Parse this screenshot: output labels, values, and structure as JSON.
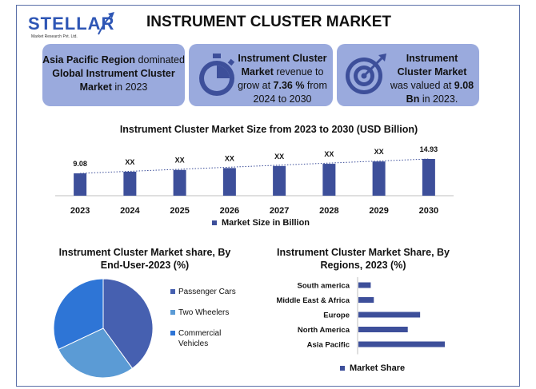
{
  "brand": {
    "name": "STELLAR",
    "sub": "Market Research Pvt. Ltd."
  },
  "title": "INSTRUMENT CLUSTER MARKET",
  "cards": {
    "c1": {
      "a": "Asia Pacific Region",
      "b": " dominated ",
      "c": "Global Instrument Cluster Market",
      "d": " in 2023"
    },
    "c2": {
      "a": "Instrument Cluster Market",
      "b": " revenue to grow at ",
      "c": "7.36 %",
      "d": " from 2024 to 2030"
    },
    "c3": {
      "a": "Instrument Cluster Market",
      "b": " was valued at ",
      "c": "9.08 Bn",
      "d": " in 2023."
    }
  },
  "colors": {
    "card_bg": "#9aaadd",
    "bar": "#3d4f9a",
    "pie_dark": "#4660b0",
    "pie_mid": "#5b9bd5",
    "pie_light": "#2e75d6"
  },
  "icons": {
    "card2": "stopwatch-icon",
    "card3": "target-icon"
  },
  "chart_data": [
    {
      "type": "bar",
      "title": "Instrument Cluster Market Size from 2023 to 2030 (USD Billion)",
      "categories": [
        "2023",
        "2024",
        "2025",
        "2026",
        "2027",
        "2028",
        "2029",
        "2030"
      ],
      "series": [
        {
          "name": "Market Size in Billion",
          "values": [
            9.08,
            9.75,
            10.47,
            11.24,
            12.07,
            12.96,
            13.91,
            14.93
          ]
        }
      ],
      "data_labels": [
        "9.08",
        "XX",
        "XX",
        "XX",
        "XX",
        "XX",
        "XX",
        "14.93"
      ],
      "trendline": true,
      "grid": false,
      "legend": "bottom"
    },
    {
      "type": "pie",
      "title": "Instrument Cluster Market share, By End-User-2023 (%)",
      "labels": [
        "Passenger Cars",
        "Two Wheelers",
        "Commercial Vehicles"
      ],
      "values": [
        40,
        28,
        32
      ],
      "legend": "right"
    },
    {
      "type": "bar",
      "orientation": "horizontal",
      "title": "Instrument Cluster Market Share, By Regions, 2023 (%)",
      "categories": [
        "South america",
        "Middle East & Africa",
        "Europe",
        "North America",
        "Asia Pacific"
      ],
      "series": [
        {
          "name": "Market Share",
          "values": [
            4,
            5,
            20,
            16,
            28
          ]
        }
      ],
      "legend": "bottom"
    }
  ]
}
